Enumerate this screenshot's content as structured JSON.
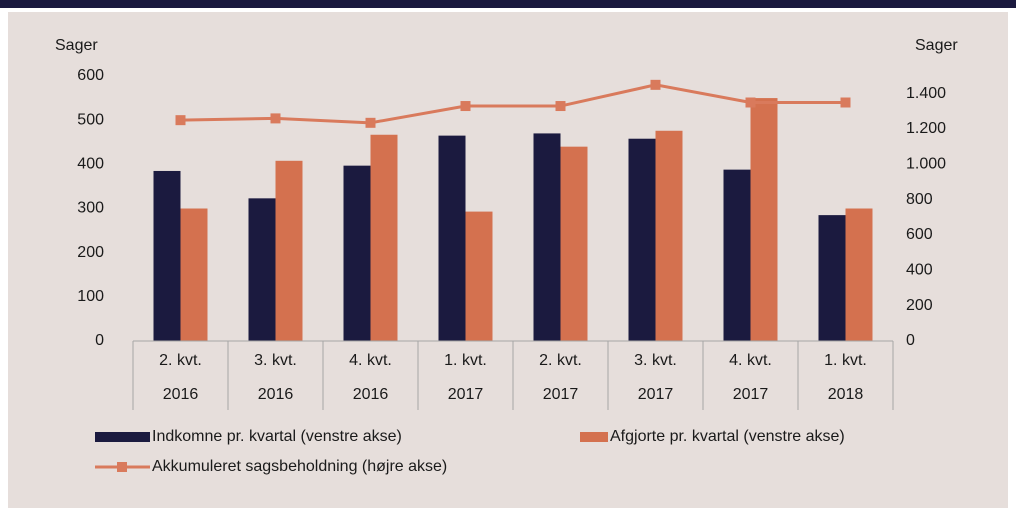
{
  "chart_data": {
    "type": "bar",
    "y_label": "Sager",
    "y2_label": "Sager",
    "categories": [
      [
        "2. kvt.",
        "2016"
      ],
      [
        "3. kvt.",
        "2016"
      ],
      [
        "4. kvt.",
        "2016"
      ],
      [
        "1. kvt.",
        "2017"
      ],
      [
        "2. kvt.",
        "2017"
      ],
      [
        "3. kvt.",
        "2017"
      ],
      [
        "4. kvt.",
        "2017"
      ],
      [
        "1. kvt.",
        "2018"
      ]
    ],
    "series": [
      {
        "name": "Indkomne pr. kvartal (venstre akse)",
        "color": "#1b1a3f",
        "type": "bar",
        "values": [
          385,
          323,
          397,
          465,
          470,
          458,
          388,
          285
        ]
      },
      {
        "name": "Afgjorte pr. kvartal (venstre akse)",
        "color": "#d4714f",
        "type": "bar",
        "values": [
          300,
          408,
          467,
          293,
          440,
          476,
          550,
          300
        ]
      },
      {
        "name": "Akkumuleret sagsbeholdning (højre akse)",
        "color": "#d97a5c",
        "type": "line",
        "axis": "y2",
        "values": [
          1250,
          1260,
          1235,
          1330,
          1330,
          1450,
          1350,
          1350
        ]
      }
    ],
    "ylim": [
      0,
      600
    ],
    "yticks": [
      0,
      100,
      200,
      300,
      400,
      500,
      600
    ],
    "y2lim": [
      0,
      1500
    ],
    "y2ticks": [
      0,
      200,
      400,
      600,
      800,
      {
        "value": 1000,
        "label": "1.000"
      },
      {
        "value": 1200,
        "label": "1.200"
      },
      {
        "value": 1400,
        "label": "1.400"
      }
    ]
  }
}
